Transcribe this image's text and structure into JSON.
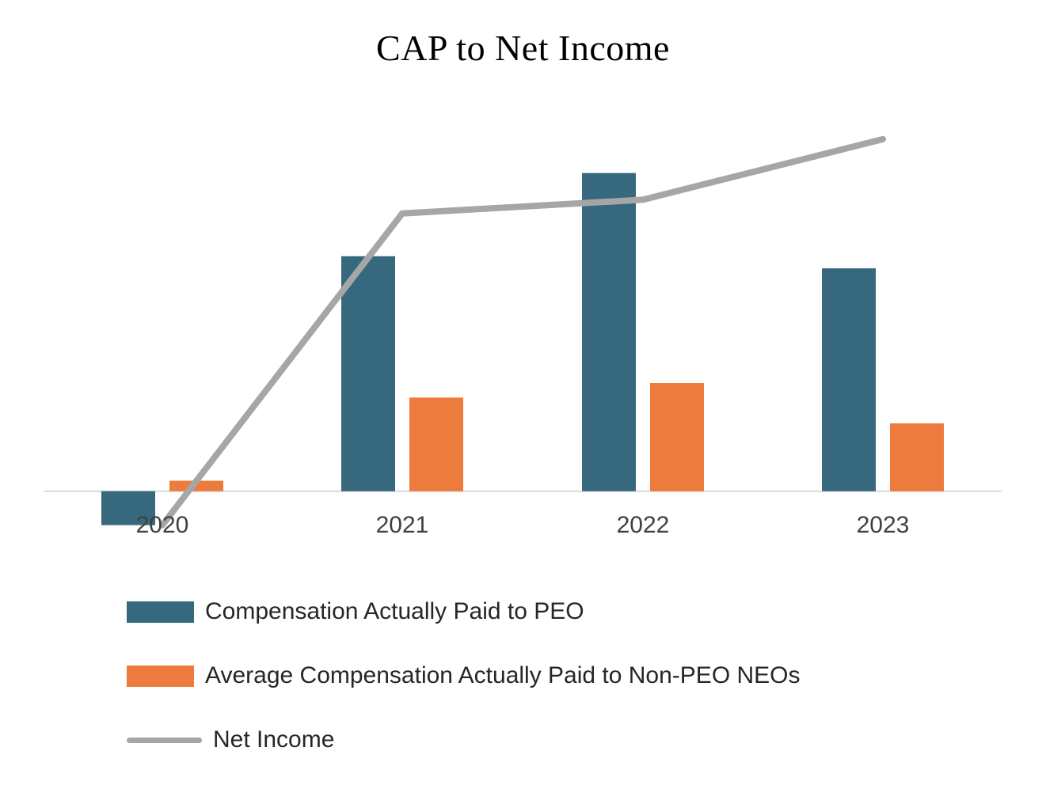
{
  "page": {
    "background": "#ffffff"
  },
  "chart_data": {
    "type": "bar",
    "subtype": "combo-bar-line",
    "title": "CAP to Net Income",
    "categories": [
      "2020",
      "2021",
      "2022",
      "2023"
    ],
    "series": [
      {
        "name": "Compensation Actually Paid to PEO",
        "type": "bar",
        "color": "#36697e",
        "values": [
          -42,
          291,
          394,
          276
        ]
      },
      {
        "name": "Average Compensation Actually Paid to Non-PEO NEOs",
        "type": "bar",
        "color": "#ec7b3d",
        "values": [
          13,
          116,
          134,
          84
        ]
      },
      {
        "name": "Net Income",
        "type": "line",
        "color": "#a6a6a6",
        "values": [
          -42,
          344,
          361,
          436
        ]
      }
    ],
    "xlabel": "",
    "ylabel": "",
    "ylim": [
      -60,
      476
    ],
    "value_axis_visible": false,
    "grid": false,
    "axis_line_color": "#d9d9d9",
    "axis_label_color": "#404040",
    "legend_position": "bottom-left"
  }
}
